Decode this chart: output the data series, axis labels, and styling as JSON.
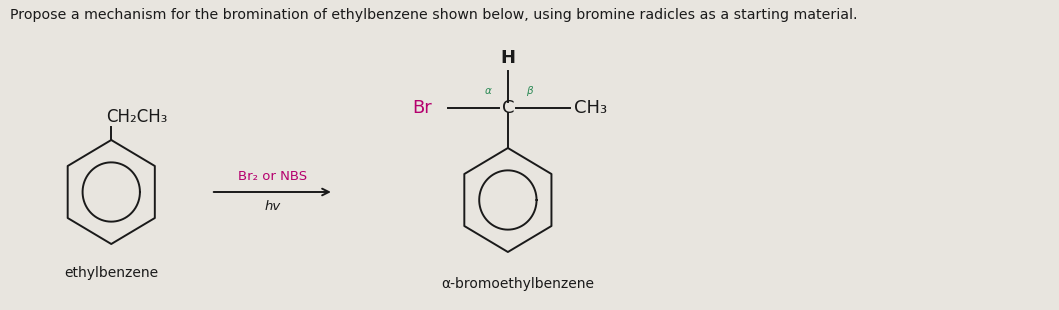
{
  "title_text": "Propose a mechanism for the bromination of ethylbenzene shown below, using bromine radicles as a starting material.",
  "title_color": "#1a1a1a",
  "title_fontsize": 10.2,
  "bg_color": "#e8e5df",
  "text_color": "#1a1a1a",
  "pink_color": "#b5006e",
  "green_color": "#2e8b57",
  "label_ethylbenzene": "ethylbenzene",
  "label_product": "α-bromoethylbenzene",
  "reagent_line1": "Br₂ or NBS",
  "reagent_line2": "hv",
  "ch2ch3_label": "CH₂CH₃",
  "H_label": "H",
  "Br_label": "Br",
  "alpha_label": "α",
  "beta_label": "β",
  "C_label": "C",
  "CH3_label": "CH₃",
  "ring_color": "#1a1a1a",
  "lw": 1.4
}
